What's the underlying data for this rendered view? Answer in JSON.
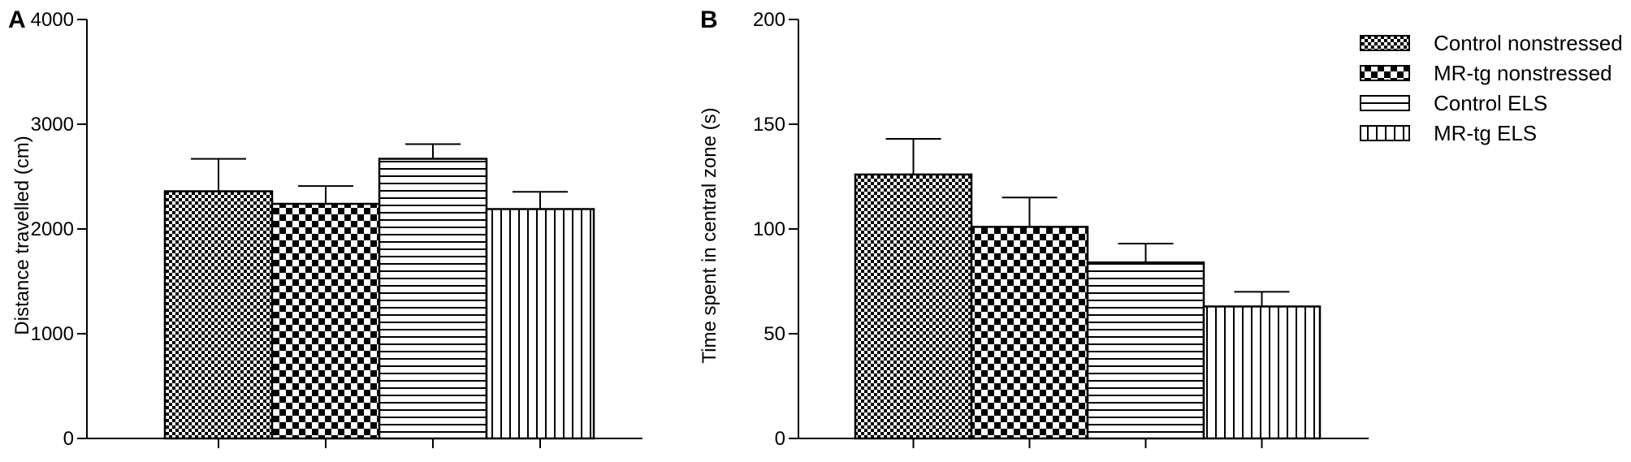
{
  "panels": [
    {
      "panel_label": "A",
      "chart_data": {
        "type": "bar",
        "categories": [
          "Control nonstressed",
          "MR-tg nonstressed",
          "Control ELS",
          "MR-tg ELS"
        ],
        "values": [
          2360,
          2240,
          2670,
          2190
        ],
        "errors": [
          310,
          170,
          140,
          165
        ],
        "ylabel": "Distance travelled (cm)",
        "ylim": [
          0,
          4000
        ],
        "yticks": [
          0,
          1000,
          2000,
          3000,
          4000
        ],
        "grid": false
      }
    },
    {
      "panel_label": "B",
      "chart_data": {
        "type": "bar",
        "categories": [
          "Control nonstressed",
          "MR-tg nonstressed",
          "Control ELS",
          "MR-tg ELS"
        ],
        "values": [
          126,
          101,
          84,
          63
        ],
        "errors": [
          17,
          14,
          9,
          7
        ],
        "ylabel": "Time spent in central zone (s)",
        "ylim": [
          0,
          200
        ],
        "yticks": [
          0,
          50,
          100,
          150,
          200
        ],
        "grid": false
      }
    }
  ],
  "legend": {
    "placement": "top-right",
    "entries": [
      {
        "label": "Control nonstressed",
        "pattern": "fine-checker"
      },
      {
        "label": "MR-tg nonstressed",
        "pattern": "coarse-checker"
      },
      {
        "label": "Control ELS",
        "pattern": "horizontal-lines"
      },
      {
        "label": "MR-tg ELS",
        "pattern": "vertical-lines"
      }
    ]
  },
  "colors": {
    "ink": "#000000",
    "background": "#ffffff"
  }
}
